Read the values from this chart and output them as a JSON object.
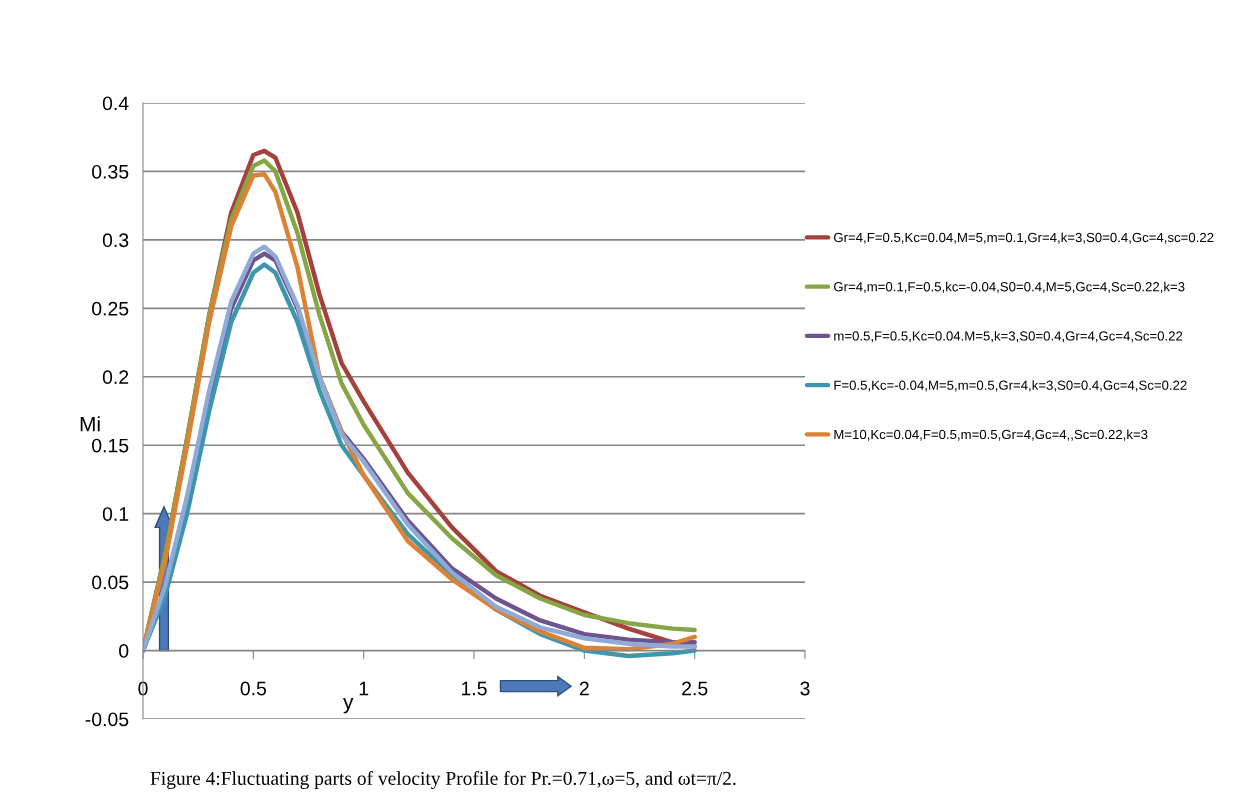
{
  "chart_data": {
    "type": "line",
    "xlabel": "y",
    "ylabel": "Mi",
    "xlim": [
      0,
      3
    ],
    "ylim": [
      -0.05,
      0.4
    ],
    "xticks": [
      0,
      0.5,
      1,
      1.5,
      2,
      2.5,
      3
    ],
    "yticks": [
      -0.05,
      0,
      0.05,
      0.1,
      0.15,
      0.2,
      0.25,
      0.3,
      0.35,
      0.4
    ],
    "grid": "y",
    "legend": "right",
    "marker": "none",
    "line_style": "solid",
    "x": [
      0,
      0.1,
      0.2,
      0.3,
      0.4,
      0.5,
      0.55,
      0.6,
      0.7,
      0.8,
      0.9,
      1.0,
      1.2,
      1.4,
      1.6,
      1.8,
      2.0,
      2.2,
      2.4,
      2.5
    ],
    "series": [
      {
        "name": "Gr=4,F=0.5,Kc=0.04,M=5,m=0.1,Gr=4,k=3,S0=0.4,Gc=4,sc=0.22",
        "color": "#a5403d",
        "values": [
          0,
          0.07,
          0.155,
          0.245,
          0.32,
          0.362,
          0.365,
          0.36,
          0.32,
          0.26,
          0.21,
          0.182,
          0.13,
          0.09,
          0.058,
          0.04,
          0.028,
          0.016,
          0.006,
          0.003
        ]
      },
      {
        "name": "Gr=4,m=0.1,F=0.5,kc=-0.04,S0=0.4,M=5,Gc=4,Sc=0.22,k=3",
        "color": "#86a544",
        "values": [
          0,
          0.07,
          0.155,
          0.245,
          0.315,
          0.354,
          0.358,
          0.35,
          0.305,
          0.245,
          0.195,
          0.165,
          0.115,
          0.082,
          0.055,
          0.038,
          0.026,
          0.02,
          0.016,
          0.015
        ]
      },
      {
        "name": "m=0.5,F=0.5,Kc=0.04.M=5,k=3,S0=0.4,Gr=4,Gc=4,Sc=0.22",
        "color": "#6e548d",
        "values": [
          0,
          0.045,
          0.11,
          0.185,
          0.25,
          0.285,
          0.29,
          0.285,
          0.25,
          0.2,
          0.16,
          0.14,
          0.095,
          0.06,
          0.038,
          0.022,
          0.012,
          0.008,
          0.006,
          0.006
        ]
      },
      {
        "name": "F=0.5,Kc=-0.04,M=5,m=0.5,Gr=4,k=3,S0=0.4,Gc=4,Sc=0.22",
        "color": "#3d96ae",
        "values": [
          0,
          0.04,
          0.1,
          0.175,
          0.24,
          0.276,
          0.282,
          0.276,
          0.24,
          0.19,
          0.15,
          0.128,
          0.085,
          0.055,
          0.03,
          0.012,
          0.0,
          -0.004,
          -0.002,
          0.0
        ]
      },
      {
        "name": "M=10,Kc=0.04,F=0.5,m=0.5,Gr=4,Gc=4,,Sc=0.22,k=3",
        "color": "#dc8235",
        "values": [
          0,
          0.065,
          0.15,
          0.24,
          0.31,
          0.347,
          0.348,
          0.335,
          0.28,
          0.2,
          0.16,
          0.128,
          0.08,
          0.052,
          0.03,
          0.014,
          0.002,
          0.001,
          0.005,
          0.01
        ]
      },
      {
        "color": "#8faad6",
        "values": [
          0,
          0.047,
          0.113,
          0.19,
          0.255,
          0.29,
          0.295,
          0.288,
          0.252,
          0.2,
          0.158,
          0.138,
          0.092,
          0.057,
          0.032,
          0.017,
          0.009,
          0.005,
          0.003,
          0.003
        ]
      }
    ],
    "annotations": [
      "Figure 4:Fluctuating parts of velocity Profile for Pr.=0.71,ω=5, and ωt=π/2."
    ]
  }
}
